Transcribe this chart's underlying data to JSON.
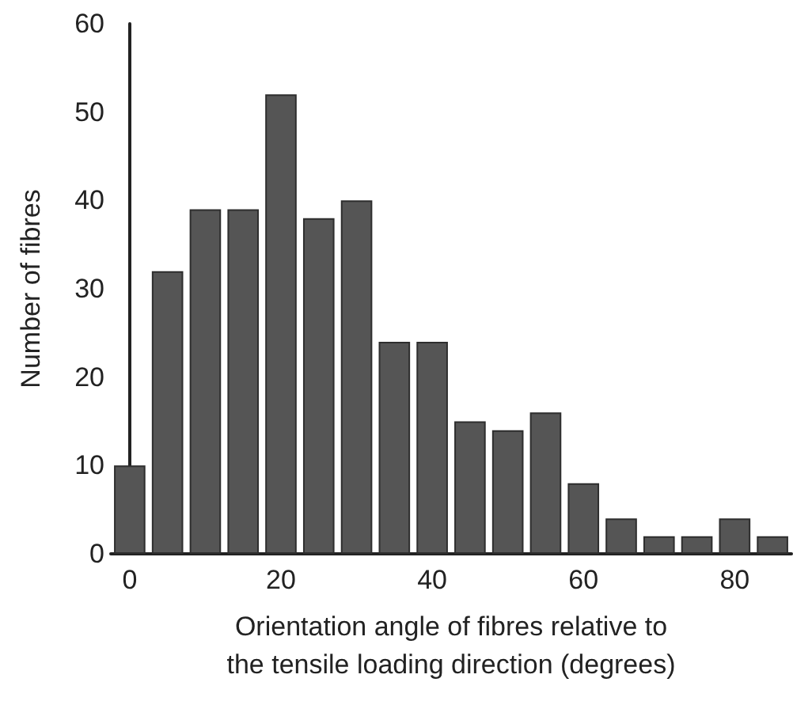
{
  "chart_data": {
    "type": "bar",
    "xlabel": "Orientation angle of fibres relative to\nthe tensile loading direction (degrees)",
    "ylabel": "Number of fibres",
    "x": [
      0,
      5,
      10,
      15,
      20,
      25,
      30,
      35,
      40,
      45,
      50,
      55,
      60,
      65,
      70,
      75,
      80,
      85
    ],
    "values": [
      10,
      32,
      39,
      39,
      52,
      38,
      40,
      24,
      24,
      15,
      14,
      16,
      8,
      4,
      2,
      2,
      4,
      2
    ],
    "color": "#555555",
    "xlim": [
      -2.5,
      87.5
    ],
    "xticks": [
      0,
      20,
      40,
      60,
      80
    ],
    "ylim": [
      0,
      60
    ],
    "yticks": [
      0,
      10,
      20,
      30,
      40,
      50,
      60
    ],
    "grid": false
  }
}
